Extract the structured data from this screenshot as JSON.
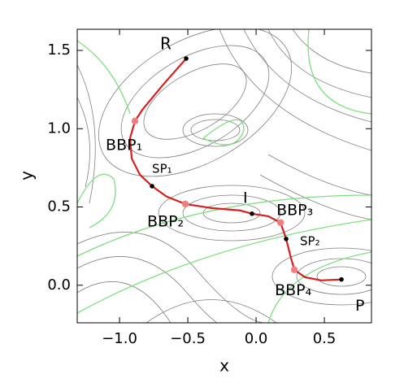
{
  "chart_data": {
    "type": "line",
    "x_label": "x",
    "y_label": "y",
    "xlim": [
      -1.31,
      0.845
    ],
    "ylim": [
      -0.24,
      1.635
    ],
    "xticks": [
      {
        "value": -1.0,
        "label": "−1.0"
      },
      {
        "value": -0.5,
        "label": "−0.5"
      },
      {
        "value": 0.0,
        "label": "0.0"
      },
      {
        "value": 0.5,
        "label": "0.5"
      }
    ],
    "yticks": [
      {
        "value": 0.0,
        "label": "0.0"
      },
      {
        "value": 0.5,
        "label": "0.5"
      },
      {
        "value": 1.0,
        "label": "1.0"
      },
      {
        "value": 1.5,
        "label": "1.5"
      }
    ],
    "series": [
      {
        "color": "#d62020",
        "x": [
          -0.512,
          -0.685,
          -0.833,
          -0.887,
          -0.923,
          -0.911,
          -0.851,
          -0.762,
          -0.655,
          -0.518,
          -0.327,
          -0.119,
          -0.03,
          0.089,
          0.179,
          0.22,
          0.256,
          0.28,
          0.357,
          0.476,
          0.625
        ],
        "values": [
          1.448,
          1.277,
          1.121,
          1.049,
          0.94,
          0.81,
          0.706,
          0.633,
          0.566,
          0.519,
          0.493,
          0.478,
          0.457,
          0.441,
          0.4,
          0.296,
          0.172,
          0.099,
          0.052,
          0.031,
          0.037
        ]
      }
    ],
    "points": [
      {
        "label": "R",
        "x": -0.512,
        "y": 1.448,
        "color": "#000000"
      },
      {
        "label": "BBP₁",
        "x": -0.887,
        "y": 1.049,
        "color": "#f08080"
      },
      {
        "label": "SP₁",
        "x": -0.762,
        "y": 0.633,
        "color": "#000000"
      },
      {
        "label": "BBP₂",
        "x": -0.518,
        "y": 0.519,
        "color": "#f08080"
      },
      {
        "label": "I",
        "x": -0.03,
        "y": 0.457,
        "color": "#000000"
      },
      {
        "label": "BBP₃",
        "x": 0.179,
        "y": 0.4,
        "color": "#f08080"
      },
      {
        "label": "SP₂",
        "x": 0.22,
        "y": 0.296,
        "color": "#000000"
      },
      {
        "label": "BBP₄",
        "x": 0.28,
        "y": 0.099,
        "color": "#f08080"
      },
      {
        "label": "P",
        "x": 0.625,
        "y": 0.037,
        "color": "#000000"
      }
    ]
  }
}
